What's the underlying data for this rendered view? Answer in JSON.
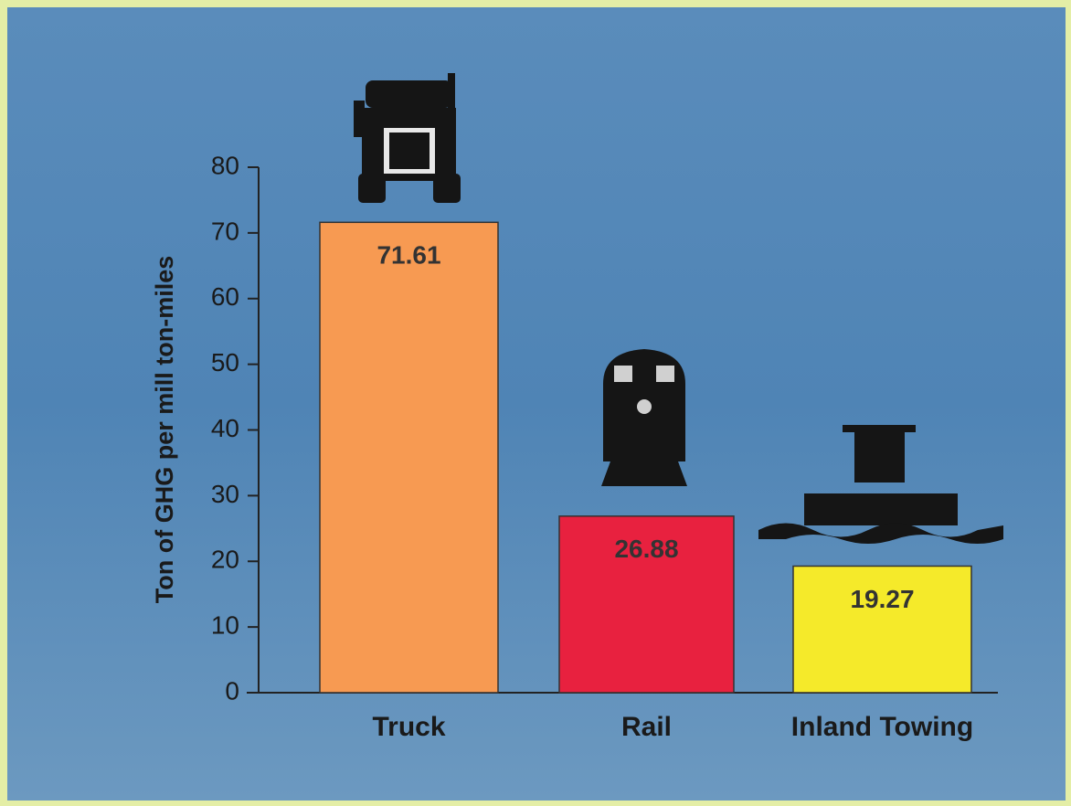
{
  "chart_data": {
    "type": "bar",
    "y_label": "Ton of GHG per mill ton-miles",
    "categories": [
      "Truck",
      "Rail",
      "Inland Towing"
    ],
    "values": [
      71.61,
      26.88,
      19.27
    ],
    "colors": [
      "#f79a52",
      "#e8213f",
      "#f5ea2a"
    ],
    "ylim": [
      0,
      80
    ],
    "yticks": [
      0,
      10,
      20,
      30,
      40,
      50,
      60,
      70,
      80
    ]
  }
}
